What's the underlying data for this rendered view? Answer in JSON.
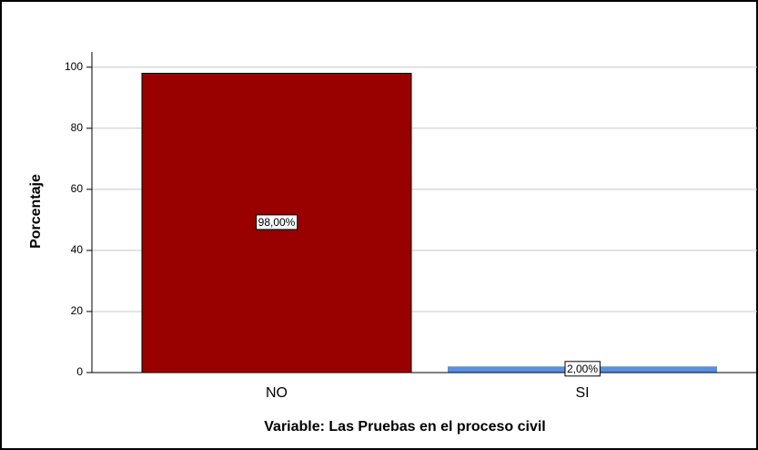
{
  "chart_data": {
    "type": "bar",
    "categories": [
      "NO",
      "SI"
    ],
    "values": [
      98,
      2
    ],
    "value_labels": [
      "98,00%",
      "2,00%"
    ],
    "colors": [
      "#990000",
      "#5a8fdc"
    ],
    "xlabel": "Variable: Las Pruebas en el proceso civil",
    "ylabel": "Porcentaje",
    "ylim": [
      0,
      105
    ],
    "yticks": [
      0,
      20,
      40,
      60,
      80,
      100
    ],
    "grid": true
  }
}
